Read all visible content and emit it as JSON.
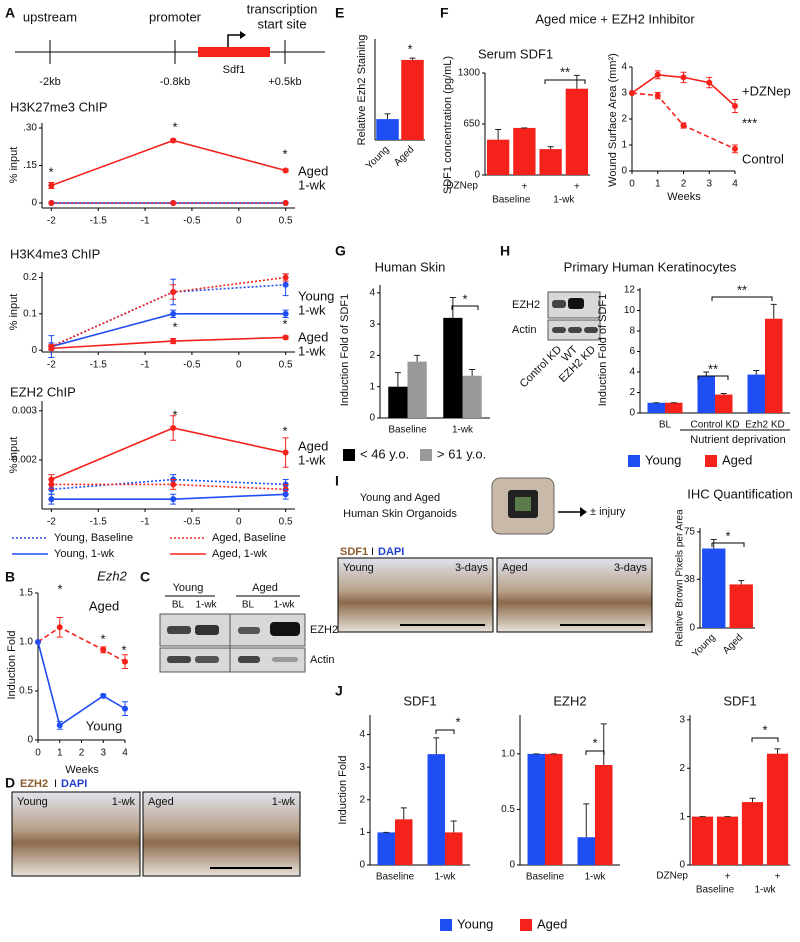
{
  "figure": {
    "letters": [
      "A",
      "B",
      "C",
      "D",
      "E",
      "F",
      "G",
      "H",
      "I",
      "J"
    ],
    "gene": [
      "upstream",
      "promoter",
      "transcription",
      "start site",
      "Sdf1",
      "-2kb",
      "-0.8kb",
      "+0.5kb"
    ],
    "f_title": "Aged mice + EZH2 Inhibitor",
    "blot_c": [
      "Young",
      "Aged",
      "BL",
      "1-wk",
      "BL",
      "1-wk",
      "EZH2",
      "Actin"
    ],
    "stain_d": [
      "EZH2",
      "I",
      "DAPI",
      "Young",
      "1-wk",
      "Aged",
      "1-wk"
    ],
    "blot_h": [
      "EZH2",
      "Actin",
      "Control KD",
      "WT",
      "EZH2 KD"
    ],
    "organoid_i": [
      "Young and Aged",
      "Human Skin Organoids",
      "± injury",
      "SDF1",
      "I",
      "DAPI",
      "Young",
      "3-days",
      "Aged",
      "3-days"
    ]
  },
  "chart_data": [
    {
      "type": "line",
      "title": "H3K27me3 ChIP",
      "ylabel": "% input",
      "x": [
        -2,
        -0.7,
        0.5
      ],
      "xlim": [
        -2.1,
        0.6
      ],
      "xticks": [
        -2,
        -1.5,
        -1,
        -0.5,
        0,
        0.5
      ],
      "ylim": [
        -0.02,
        0.32
      ],
      "yticks": [
        0,
        {
          "value": 0.15,
          "label": ".15"
        },
        {
          "value": 0.3,
          "label": ".30"
        }
      ],
      "series": [
        {
          "color": "#1f4ef5",
          "style": "dotted",
          "values": [
            0,
            0,
            0
          ]
        },
        {
          "color": "#1f4ef5",
          "style": "solid",
          "values": [
            0,
            0,
            0
          ]
        },
        {
          "color": "#f5221b",
          "style": "dotted",
          "values": [
            0,
            0,
            0
          ]
        },
        {
          "color": "#f5221b",
          "style": "solid",
          "values": [
            0.07,
            0.25,
            0.13
          ],
          "errors": [
            0.012,
            0.006,
            0.006
          ]
        }
      ],
      "annotations": [
        "*",
        "*",
        "*",
        "Aged",
        "1-wk"
      ]
    },
    {
      "type": "line",
      "title": "H3K4me3 ChIP",
      "ylabel": "% input",
      "x": [
        -2,
        -0.7,
        0.5
      ],
      "xlim": [
        -2.1,
        0.6
      ],
      "xticks": [
        -2,
        -1.5,
        -1,
        -0.5,
        0,
        0.5
      ],
      "ylim": [
        -0.005,
        0.215
      ],
      "yticks": [
        0,
        0.1,
        0.2
      ],
      "series": [
        {
          "color": "#1f4ef5",
          "style": "dotted",
          "values": [
            0.01,
            0.16,
            0.18
          ],
          "errors": [
            0.03,
            0.035,
            0.03
          ]
        },
        {
          "color": "#1f4ef5",
          "style": "solid",
          "values": [
            0.01,
            0.1,
            0.1
          ],
          "errors": [
            0.01,
            0.01,
            0.01
          ]
        },
        {
          "color": "#f5221b",
          "style": "dotted",
          "values": [
            0.01,
            0.16,
            0.2
          ],
          "errors": [
            0.005,
            0.02,
            0.01
          ]
        },
        {
          "color": "#f5221b",
          "style": "solid",
          "values": [
            0.005,
            0.025,
            0.035
          ],
          "errors": [
            0.005,
            0.007,
            0.004
          ]
        }
      ],
      "annotations": [
        "Young",
        "1-wk",
        "*",
        "*",
        "Aged",
        "1-wk"
      ]
    },
    {
      "type": "line",
      "title": "EZH2 ChIP",
      "ylabel": "% input",
      "x": [
        -2,
        -0.7,
        0.5
      ],
      "xlim": [
        -2.1,
        0.6
      ],
      "xticks": [
        -2,
        -1.5,
        -1,
        -0.5,
        0,
        0.5
      ],
      "ylim": [
        0.001,
        0.0032
      ],
      "yticks": [
        0.002,
        0.003
      ],
      "series": [
        {
          "name": "Young, Baseline",
          "color": "#1f4ef5",
          "style": "dotted",
          "values": [
            0.0014,
            0.0016,
            0.0015
          ],
          "errors": [
            0.0001,
            0.0001,
            0.0001
          ]
        },
        {
          "name": "Aged, Baseline",
          "color": "#f5221b",
          "style": "dotted",
          "values": [
            0.0015,
            0.0015,
            0.0014
          ],
          "errors": [
            0.0001,
            0.0001,
            0.0001
          ]
        },
        {
          "name": "Young, 1-wk",
          "color": "#1f4ef5",
          "style": "solid",
          "values": [
            0.0012,
            0.0012,
            0.0013
          ],
          "errors": [
            0.0001,
            0.0001,
            0.0001
          ]
        },
        {
          "name": "Aged, 1-wk",
          "color": "#f5221b",
          "style": "solid",
          "values": [
            0.0016,
            0.00265,
            0.00215
          ],
          "errors": [
            0.0001,
            0.00025,
            0.0003
          ]
        }
      ],
      "annotations": [
        "*",
        "*",
        "Aged",
        "1-wk"
      ]
    },
    {
      "type": "line",
      "title": "Ezh2",
      "xlabel": "Weeks",
      "ylabel": "Induction Fold",
      "x": [
        0,
        1,
        3,
        4
      ],
      "xlim": [
        0,
        4
      ],
      "xticks": [
        0,
        1,
        2,
        3,
        4
      ],
      "ylim": [
        0,
        1.5
      ],
      "yticks": [
        0,
        0.5,
        {
          "value": 1,
          "label": "1.0"
        },
        1.5
      ],
      "series": [
        {
          "name": "Aged",
          "color": "#f5221b",
          "style": "dashed",
          "values": [
            1,
            1.15,
            0.92,
            0.8
          ],
          "errors": [
            0,
            0.1,
            0.03,
            0.07
          ]
        },
        {
          "name": "Young",
          "color": "#1f4ef5",
          "style": "solid",
          "values": [
            1,
            0.15,
            0.45,
            0.32
          ],
          "errors": [
            0,
            0.04,
            0.02,
            0.07
          ]
        }
      ],
      "annotations": [
        "*",
        "*",
        "*"
      ]
    },
    {
      "type": "bar",
      "ylabel": "Relative Ezh2 Staining",
      "categories": [
        "Young",
        "Aged"
      ],
      "ylim": [
        0,
        2.9
      ],
      "series": [
        {
          "colors": [
            "#1f4ef5",
            "#f5221b"
          ],
          "values": [
            0.6,
            2.3
          ],
          "errors": [
            0.15,
            0.05
          ]
        }
      ],
      "annotations": [
        "*"
      ]
    },
    {
      "type": "bar",
      "title": "Serum SDF1",
      "ylabel": "SDF1 concentration (pg/mL)",
      "categories": [
        null,
        "+",
        null,
        "+"
      ],
      "category_label": "DZNep",
      "groups": [
        "Baseline",
        "1-wk"
      ],
      "ylim": [
        0,
        1300
      ],
      "yticks": [
        0,
        650,
        1300
      ],
      "series": [
        {
          "color": "#f5221b",
          "values": [
            450,
            600,
            330,
            1100
          ],
          "errors": [
            130,
            0,
            30,
            170
          ]
        }
      ],
      "annotations": [
        "**"
      ]
    },
    {
      "type": "line",
      "ylabel": "Wound Surface Area (mm²)",
      "xlabel": "Weeks",
      "xlim": [
        0,
        4
      ],
      "xticks": [
        0,
        1,
        2,
        3,
        4
      ],
      "ylim": [
        0,
        4
      ],
      "yticks": [
        0,
        1,
        2,
        3,
        4
      ],
      "series": [
        {
          "name": "+DZNep",
          "color": "#f5221b",
          "style": "solid",
          "x": [
            0,
            1,
            2,
            3,
            4
          ],
          "values": [
            3,
            3.7,
            3.6,
            3.4,
            2.5
          ],
          "errors": [
            0,
            0.15,
            0.2,
            0.2,
            0.25
          ]
        },
        {
          "name": "Control",
          "color": "#f5221b",
          "style": "dashed",
          "x": [
            0,
            1,
            2,
            4
          ],
          "values": [
            3,
            2.9,
            1.75,
            0.85
          ],
          "errors": [
            0,
            0.12,
            0.1,
            0.15
          ]
        }
      ],
      "annotations": [
        "***"
      ]
    },
    {
      "type": "bar",
      "title": "Human Skin",
      "ylabel": "Induction Fold of SDF1",
      "categories": [
        "Baseline",
        "1-wk"
      ],
      "ylim": [
        0,
        4.25
      ],
      "yticks": [
        0,
        1,
        2,
        3,
        4
      ],
      "series": [
        {
          "name": "< 46 y.o.",
          "color": "#000000",
          "values": [
            1,
            3.2
          ],
          "errors": [
            0.45,
            0.65
          ]
        },
        {
          "name": "> 61 y.o.",
          "color": "#999999",
          "values": [
            1.8,
            1.35
          ],
          "errors": [
            0.2,
            0.2
          ]
        }
      ],
      "annotations": [
        "*"
      ]
    },
    {
      "type": "bar",
      "title": "Primary Human Keratinocytes",
      "ylabel": "Induction Fold of SDF1",
      "categories": [
        "BL",
        "Control KD",
        "Ezh2 KD"
      ],
      "group_label": "Nutrient deprivation",
      "ylim": [
        0,
        12.2
      ],
      "yticks": [
        0,
        2,
        4,
        6,
        8,
        10,
        12
      ],
      "series": [
        {
          "name": "Young",
          "color": "#1f4ef5",
          "values": [
            1,
            3.6,
            3.75
          ],
          "errors": [
            0,
            0.4,
            0.4
          ]
        },
        {
          "name": "Aged",
          "color": "#f5221b",
          "values": [
            1,
            1.8,
            9.2
          ],
          "errors": [
            0,
            0.1,
            1.4
          ]
        }
      ],
      "annotations": [
        "**",
        "**"
      ]
    },
    {
      "type": "bar",
      "title": "IHC Quantification",
      "ylabel": "Relative Brown Pixels per Area",
      "categories": [
        "Young",
        "Aged"
      ],
      "ylim": [
        0,
        78
      ],
      "yticks": [
        0,
        38,
        75
      ],
      "series": [
        {
          "colors": [
            "#1f4ef5",
            "#f5221b"
          ],
          "values": [
            62,
            34
          ],
          "errors": [
            7,
            3
          ]
        }
      ],
      "annotations": [
        "*"
      ]
    },
    {
      "type": "bar",
      "title": "SDF1",
      "ylabel": "Induction Fold",
      "categories": [
        "Baseline",
        "1-wk"
      ],
      "ylim": [
        0,
        4.6
      ],
      "yticks": [
        0,
        1,
        2,
        3,
        4
      ],
      "series": [
        {
          "name": "Young",
          "color": "#1f4ef5",
          "values": [
            1,
            3.4
          ],
          "errors": [
            0,
            0.5
          ]
        },
        {
          "name": "Aged",
          "color": "#f5221b",
          "values": [
            1.4,
            1
          ],
          "errors": [
            0.35,
            0.35
          ]
        }
      ],
      "annotations": [
        "*"
      ]
    },
    {
      "type": "bar",
      "title": "EZH2",
      "categories": [
        "Baseline",
        "1-wk"
      ],
      "ylim": [
        0,
        1.35
      ],
      "yticks": [
        0,
        0.5,
        {
          "value": 1,
          "label": "1.0"
        }
      ],
      "series": [
        {
          "color": "#1f4ef5",
          "values": [
            1,
            0.25
          ],
          "errors": [
            0,
            0.3
          ]
        },
        {
          "color": "#f5221b",
          "values": [
            1,
            0.9
          ],
          "errors": [
            0,
            0.37
          ]
        }
      ],
      "annotations": [
        "*"
      ]
    },
    {
      "type": "bar",
      "title": "SDF1",
      "categories": [
        null,
        "+",
        null,
        "+"
      ],
      "category_label": "DZNep",
      "groups": [
        "Baseline",
        "1-wk"
      ],
      "ylim": [
        0,
        3.1
      ],
      "yticks": [
        0,
        1,
        2,
        3
      ],
      "series": [
        {
          "color": "#f5221b",
          "values": [
            1,
            1,
            1.3,
            2.3
          ],
          "errors": [
            0,
            0,
            0.08,
            0.1
          ]
        }
      ],
      "annotations": [
        "*"
      ]
    }
  ]
}
